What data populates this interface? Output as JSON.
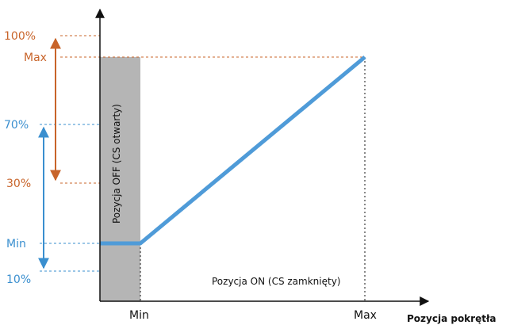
{
  "colors": {
    "orange": "#c8642a",
    "blue": "#3a8fcf",
    "line": "#4f9bd8",
    "off_zone": "#b5b5b5",
    "axis": "#111111"
  },
  "chart_data": {
    "type": "line",
    "title": "",
    "xlabel": "Pozycja pokrętła",
    "ylabel": "",
    "x_ticks": [
      "Min",
      "Max"
    ],
    "series": [
      {
        "points": [
          {
            "x": "Min",
            "y": "Min"
          },
          {
            "x": "Max",
            "y": "Max"
          }
        ]
      }
    ],
    "y_levels_orange": [
      "100%",
      "Max",
      "30%"
    ],
    "y_levels_blue": [
      "70%",
      "Min",
      "10%"
    ],
    "range_orange": [
      "30%",
      "100%"
    ],
    "range_blue": [
      "10%",
      "70%"
    ],
    "zones": {
      "off": "Pozycja OFF (CS otwarty)",
      "on": "Pozycja ON (CS zamknięty)"
    },
    "grid": false
  }
}
